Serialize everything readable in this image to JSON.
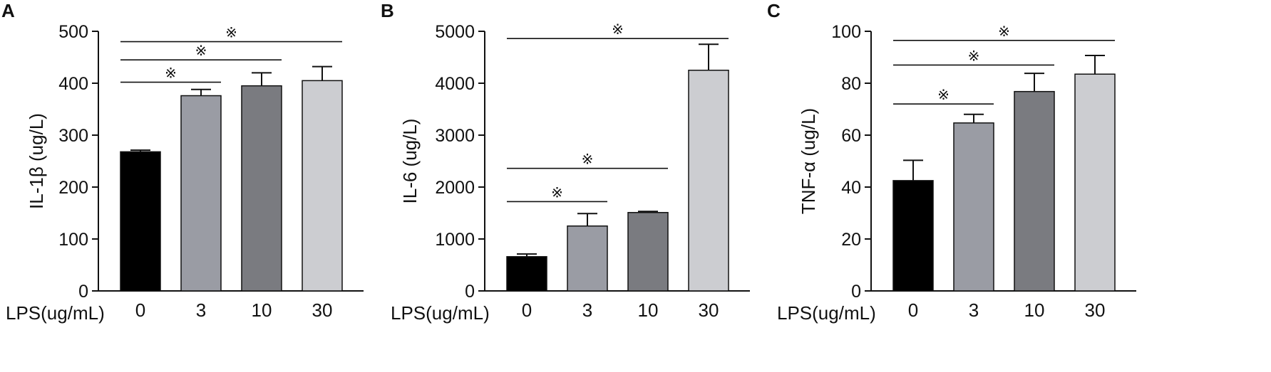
{
  "figure": {
    "xlabel_prefix": "LPS(ug/mL)",
    "significance_mark": "※"
  },
  "chart_data": [
    {
      "type": "bar",
      "panel_label": "A",
      "ylabel": "IL-1β (ug/L)",
      "ylim": [
        0,
        500
      ],
      "yticks": [
        0,
        100,
        200,
        300,
        400,
        500
      ],
      "categories": [
        "0",
        "3",
        "10",
        "30"
      ],
      "values": [
        268,
        376,
        395,
        405
      ],
      "errors": [
        3,
        12,
        25,
        27
      ],
      "bar_colors": [
        "#000000",
        "#9a9ca4",
        "#7a7b80",
        "#cccdd1"
      ],
      "significance": [
        {
          "from": 0,
          "to": 1,
          "y": 402,
          "label": "※"
        },
        {
          "from": 0,
          "to": 2,
          "y": 445,
          "label": "※"
        },
        {
          "from": 0,
          "to": 3,
          "y": 480,
          "label": "※"
        }
      ]
    },
    {
      "type": "bar",
      "panel_label": "B",
      "ylabel": "IL-6 (ug/L)",
      "ylim": [
        0,
        5000
      ],
      "yticks": [
        0,
        1000,
        2000,
        3000,
        4000,
        5000
      ],
      "categories": [
        "0",
        "3",
        "10",
        "30"
      ],
      "values": [
        660,
        1250,
        1510,
        4250
      ],
      "errors": [
        50,
        240,
        20,
        500
      ],
      "bar_colors": [
        "#000000",
        "#9a9ca4",
        "#7a7b80",
        "#cccdd1"
      ],
      "significance": [
        {
          "from": 0,
          "to": 1,
          "y": 1720,
          "label": "※"
        },
        {
          "from": 0,
          "to": 2,
          "y": 2360,
          "label": "※"
        },
        {
          "from": 0,
          "to": 3,
          "y": 4860,
          "label": "※"
        }
      ]
    },
    {
      "type": "bar",
      "panel_label": "C",
      "ylabel": "TNF-α (ug/L)",
      "ylim": [
        0,
        100
      ],
      "yticks": [
        0,
        20,
        40,
        60,
        80,
        100
      ],
      "categories": [
        "0",
        "3",
        "10",
        "30"
      ],
      "values": [
        42.5,
        64.7,
        76.8,
        83.5
      ],
      "errors": [
        7.8,
        3.3,
        7.0,
        7.2
      ],
      "bar_colors": [
        "#000000",
        "#9a9ca4",
        "#7a7b80",
        "#cccdd1"
      ],
      "significance": [
        {
          "from": 0,
          "to": 1,
          "y": 72,
          "label": "※"
        },
        {
          "from": 0,
          "to": 2,
          "y": 87,
          "label": "※"
        },
        {
          "from": 0,
          "to": 3,
          "y": 96.5,
          "label": "※"
        }
      ]
    }
  ]
}
